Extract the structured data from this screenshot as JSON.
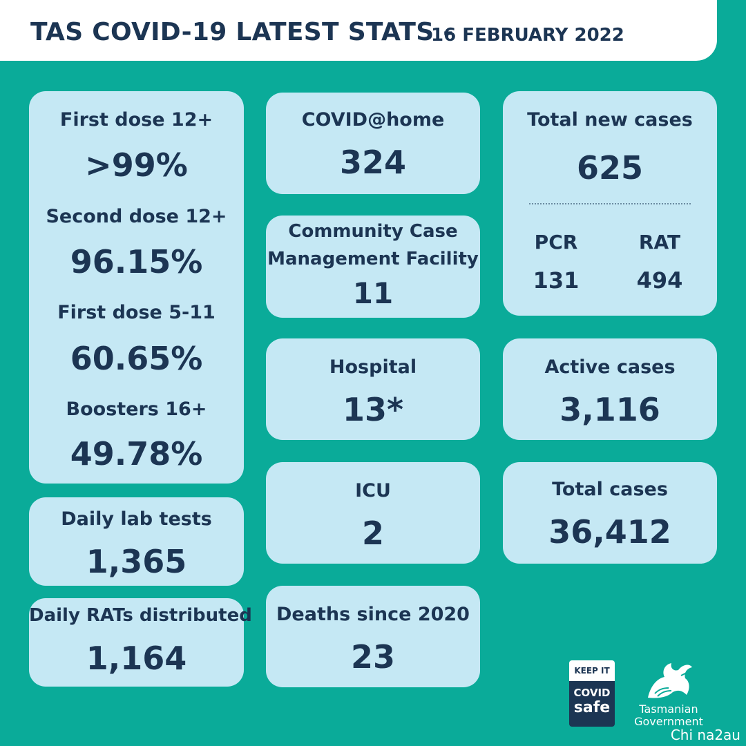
{
  "header": {
    "title": "TAS COVID-19 LATEST STATS -",
    "date": "16 FEBRUARY 2022"
  },
  "vaccination": {
    "first_dose_12_label": "First dose 12+",
    "first_dose_12_value": ">99%",
    "second_dose_12_label": "Second dose 12+",
    "second_dose_12_value": "96.15%",
    "first_dose_5_11_label": "First dose 5-11",
    "first_dose_5_11_value": "60.65%",
    "boosters_label": "Boosters 16+",
    "boosters_value": "49.78%"
  },
  "daily_lab_tests": {
    "label": "Daily lab tests",
    "value": "1,365"
  },
  "daily_rats": {
    "label": "Daily RATs distributed",
    "value": "1,164"
  },
  "covid_at_home": {
    "label": "COVID@home",
    "value": "324"
  },
  "ccmf": {
    "label_line1": "Community Case",
    "label_line2": "Management Facility",
    "value": "11"
  },
  "hospital": {
    "label": "Hospital",
    "value": "13*"
  },
  "icu": {
    "label": "ICU",
    "value": "2"
  },
  "deaths": {
    "label": "Deaths since 2020",
    "value": "23"
  },
  "total_new_cases": {
    "label": "Total new cases",
    "value": "625",
    "pcr_label": "PCR",
    "pcr_value": "131",
    "rat_label": "RAT",
    "rat_value": "494"
  },
  "active_cases": {
    "label": "Active cases",
    "value": "3,116"
  },
  "total_cases": {
    "label": "Total cases",
    "value": "36,412"
  },
  "logos": {
    "keep_it": "KEEP IT",
    "covid": "COVID",
    "safe": "safe",
    "tas_line1": "Tasmanian",
    "tas_line2": "Government"
  },
  "watermark": "Chi na2au",
  "colors": {
    "background": "#0aab99",
    "card": "#c5e8f4",
    "text": "#1c3553",
    "header_bg": "#ffffff"
  }
}
